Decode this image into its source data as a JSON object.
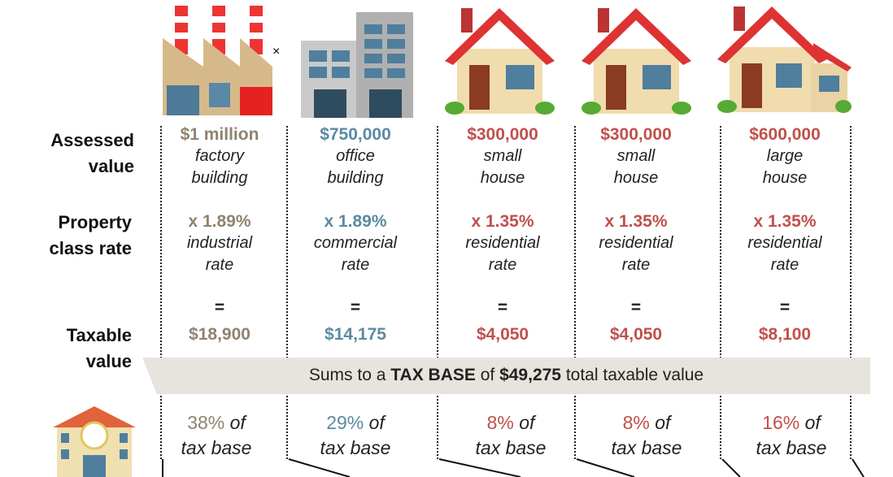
{
  "colors": {
    "industrial": "#8f8270",
    "commercial": "#5b8aa0",
    "residential": "#c0504d"
  },
  "row_labels": {
    "assessed": [
      "Assessed",
      "value"
    ],
    "rate": [
      "Property",
      "class rate"
    ],
    "taxable": [
      "Taxable",
      "value"
    ]
  },
  "properties": [
    {
      "icon": "factory-icon",
      "value": "$1 million",
      "type1": "factory",
      "type2": "building",
      "rate": "x 1.89%",
      "rate1": "industrial",
      "rate2": "rate",
      "eq": "=",
      "taxable": "$18,900",
      "share": "38%",
      "of": "of",
      "taxbase": "tax base",
      "class": "industrial"
    },
    {
      "icon": "office-building-icon",
      "value": "$750,000",
      "type1": "office",
      "type2": "building",
      "rate": "x 1.89%",
      "rate1": "commercial",
      "rate2": "rate",
      "eq": "=",
      "taxable": "$14,175",
      "share": "29%",
      "of": "of",
      "taxbase": "tax base",
      "class": "commercial"
    },
    {
      "icon": "house-icon",
      "value": "$300,000",
      "type1": "small",
      "type2": "house",
      "rate": "x 1.35%",
      "rate1": "residential",
      "rate2": "rate",
      "eq": "=",
      "taxable": "$4,050",
      "share": "8%",
      "of": "of",
      "taxbase": "tax base",
      "class": "residential"
    },
    {
      "icon": "house-icon",
      "value": "$300,000",
      "type1": "small",
      "type2": "house",
      "rate": "x 1.35%",
      "rate1": "residential",
      "rate2": "rate",
      "eq": "=",
      "taxable": "$4,050",
      "share": "8%",
      "of": "of",
      "taxbase": "tax base",
      "class": "residential"
    },
    {
      "icon": "house-with-garage-icon",
      "value": "$600,000",
      "type1": "large",
      "type2": "house",
      "rate": "x 1.35%",
      "rate1": "residential",
      "rate2": "rate",
      "eq": "=",
      "taxable": "$8,100",
      "share": "16%",
      "of": "of",
      "taxbase": "tax base",
      "class": "residential"
    }
  ],
  "band": {
    "pre": "Sums to a ",
    "bold1": "TAX BASE",
    "mid": " of ",
    "bold2": "$49,275",
    "post": " total taxable value"
  },
  "close_mark": "×"
}
